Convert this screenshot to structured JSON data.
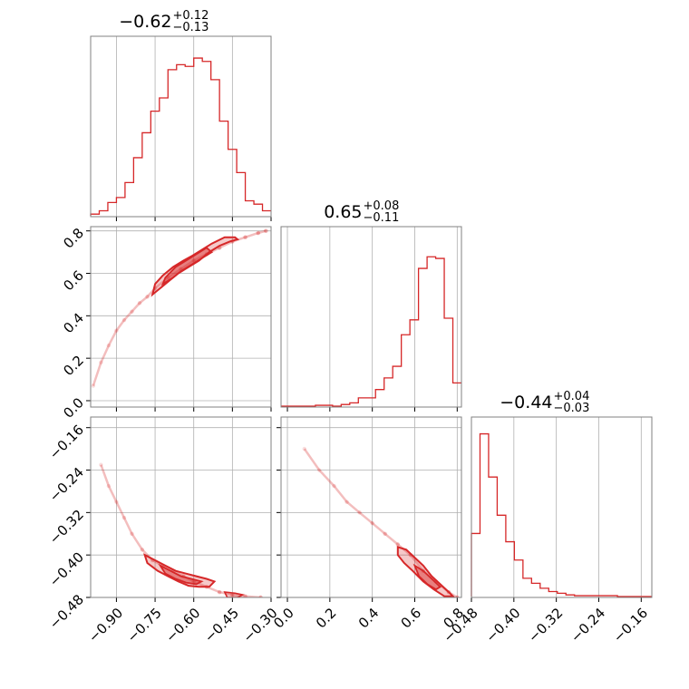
{
  "chart_data": {
    "type": "corner",
    "color": "#d62728",
    "grid": true,
    "parameters": [
      {
        "title": {
          "median": "−0.62",
          "upper": "+0.12",
          "lower": "−0.13"
        },
        "range": [
          -1.0,
          -0.3
        ],
        "ticks": [
          -0.9,
          -0.75,
          -0.6,
          -0.45,
          -0.3
        ],
        "tick_labels": [
          "−0.90",
          "−0.75",
          "−0.60",
          "−0.45",
          "−0.30"
        ],
        "hist": [
          0.01,
          0.03,
          0.08,
          0.11,
          0.2,
          0.35,
          0.5,
          0.63,
          0.71,
          0.88,
          0.91,
          0.9,
          0.95,
          0.93,
          0.82,
          0.57,
          0.4,
          0.26,
          0.09,
          0.07,
          0.03
        ]
      },
      {
        "title": {
          "median": "0.65",
          "upper": "+0.08",
          "lower": "−0.11"
        },
        "range": [
          -0.03,
          0.82
        ],
        "ticks": [
          0.0,
          0.2,
          0.4,
          0.6,
          0.8
        ],
        "tick_labels": [
          "0.0",
          "0.2",
          "0.4",
          "0.6",
          "0.8"
        ],
        "hist": [
          0.0,
          0.0,
          0.0,
          0.0,
          0.005,
          0.005,
          0.0,
          0.01,
          0.02,
          0.05,
          0.05,
          0.1,
          0.17,
          0.24,
          0.43,
          0.52,
          0.83,
          0.9,
          0.89,
          0.53,
          0.14
        ]
      },
      {
        "title": {
          "median": "−0.44",
          "upper": "+0.04",
          "lower": "−0.03"
        },
        "range": [
          -0.48,
          -0.14
        ],
        "ticks": [
          -0.48,
          -0.4,
          -0.32,
          -0.24,
          -0.16
        ],
        "tick_labels": [
          "−0.48",
          "−0.40",
          "−0.32",
          "−0.24",
          "−0.16"
        ],
        "hist": [
          0.38,
          0.98,
          0.72,
          0.49,
          0.33,
          0.22,
          0.11,
          0.08,
          0.05,
          0.03,
          0.02,
          0.01,
          0.005,
          0.005,
          0.005,
          0.005,
          0.005,
          0.0,
          0.0,
          0.0,
          0.0
        ]
      }
    ],
    "pairs": [
      {
        "x_param": 0,
        "y_param": 1,
        "trail": [
          [
            -0.99,
            0.07
          ],
          [
            -0.96,
            0.18
          ],
          [
            -0.93,
            0.26
          ],
          [
            -0.9,
            0.33
          ],
          [
            -0.87,
            0.38
          ],
          [
            -0.84,
            0.42
          ],
          [
            -0.81,
            0.46
          ],
          [
            -0.78,
            0.49
          ],
          [
            -0.75,
            0.53
          ],
          [
            -0.7,
            0.58
          ],
          [
            -0.65,
            0.62
          ],
          [
            -0.6,
            0.66
          ],
          [
            -0.55,
            0.69
          ],
          [
            -0.5,
            0.72
          ],
          [
            -0.45,
            0.75
          ],
          [
            -0.4,
            0.77
          ],
          [
            -0.35,
            0.79
          ],
          [
            -0.32,
            0.8
          ]
        ],
        "contour_outer": [
          [
            -0.76,
            0.5
          ],
          [
            -0.73,
            0.53
          ],
          [
            -0.69,
            0.57
          ],
          [
            -0.66,
            0.6
          ],
          [
            -0.62,
            0.63
          ],
          [
            -0.58,
            0.66
          ],
          [
            -0.54,
            0.7
          ],
          [
            -0.5,
            0.73
          ],
          [
            -0.46,
            0.75
          ],
          [
            -0.43,
            0.76
          ],
          [
            -0.44,
            0.77
          ],
          [
            -0.48,
            0.77
          ],
          [
            -0.53,
            0.74
          ],
          [
            -0.57,
            0.71
          ],
          [
            -0.61,
            0.68
          ],
          [
            -0.64,
            0.66
          ],
          [
            -0.68,
            0.63
          ],
          [
            -0.72,
            0.59
          ],
          [
            -0.75,
            0.55
          ]
        ],
        "contour_inner": [
          [
            -0.72,
            0.55
          ],
          [
            -0.68,
            0.58
          ],
          [
            -0.65,
            0.61
          ],
          [
            -0.61,
            0.64
          ],
          [
            -0.57,
            0.67
          ],
          [
            -0.53,
            0.7
          ],
          [
            -0.55,
            0.72
          ],
          [
            -0.59,
            0.69
          ],
          [
            -0.63,
            0.66
          ],
          [
            -0.67,
            0.63
          ],
          [
            -0.71,
            0.58
          ]
        ]
      },
      {
        "x_param": 0,
        "y_param": 2,
        "trail": [
          [
            -0.96,
            -0.23
          ],
          [
            -0.93,
            -0.27
          ],
          [
            -0.9,
            -0.3
          ],
          [
            -0.87,
            -0.33
          ],
          [
            -0.84,
            -0.36
          ],
          [
            -0.8,
            -0.39
          ],
          [
            -0.76,
            -0.41
          ],
          [
            -0.72,
            -0.42
          ],
          [
            -0.68,
            -0.43
          ],
          [
            -0.64,
            -0.44
          ],
          [
            -0.6,
            -0.45
          ],
          [
            -0.55,
            -0.46
          ],
          [
            -0.5,
            -0.47
          ],
          [
            -0.45,
            -0.475
          ],
          [
            -0.4,
            -0.478
          ],
          [
            -0.34,
            -0.48
          ]
        ],
        "contour_outer": [
          [
            -0.79,
            -0.4
          ],
          [
            -0.75,
            -0.41
          ],
          [
            -0.71,
            -0.42
          ],
          [
            -0.67,
            -0.43
          ],
          [
            -0.63,
            -0.435
          ],
          [
            -0.59,
            -0.44
          ],
          [
            -0.55,
            -0.445
          ],
          [
            -0.52,
            -0.45
          ],
          [
            -0.54,
            -0.46
          ],
          [
            -0.58,
            -0.46
          ],
          [
            -0.62,
            -0.458
          ],
          [
            -0.66,
            -0.45
          ],
          [
            -0.7,
            -0.44
          ],
          [
            -0.74,
            -0.43
          ],
          [
            -0.78,
            -0.415
          ]
        ],
        "contour_inner": [
          [
            -0.73,
            -0.42
          ],
          [
            -0.69,
            -0.43
          ],
          [
            -0.65,
            -0.44
          ],
          [
            -0.61,
            -0.445
          ],
          [
            -0.57,
            -0.45
          ],
          [
            -0.59,
            -0.455
          ],
          [
            -0.63,
            -0.452
          ],
          [
            -0.67,
            -0.445
          ],
          [
            -0.71,
            -0.435
          ]
        ],
        "contour_tail": [
          [
            -0.48,
            -0.47
          ],
          [
            -0.44,
            -0.472
          ],
          [
            -0.41,
            -0.475
          ],
          [
            -0.43,
            -0.48
          ],
          [
            -0.47,
            -0.48
          ]
        ]
      },
      {
        "x_param": 1,
        "y_param": 2,
        "trail": [
          [
            0.08,
            -0.2
          ],
          [
            0.15,
            -0.24
          ],
          [
            0.22,
            -0.27
          ],
          [
            0.28,
            -0.3
          ],
          [
            0.34,
            -0.32
          ],
          [
            0.4,
            -0.34
          ],
          [
            0.46,
            -0.36
          ],
          [
            0.52,
            -0.38
          ],
          [
            0.58,
            -0.4
          ],
          [
            0.64,
            -0.43
          ],
          [
            0.7,
            -0.45
          ],
          [
            0.76,
            -0.47
          ],
          [
            0.8,
            -0.48
          ]
        ],
        "contour_outer": [
          [
            0.52,
            -0.385
          ],
          [
            0.56,
            -0.39
          ],
          [
            0.6,
            -0.405
          ],
          [
            0.64,
            -0.42
          ],
          [
            0.68,
            -0.44
          ],
          [
            0.72,
            -0.455
          ],
          [
            0.76,
            -0.47
          ],
          [
            0.78,
            -0.478
          ],
          [
            0.74,
            -0.478
          ],
          [
            0.69,
            -0.465
          ],
          [
            0.64,
            -0.45
          ],
          [
            0.59,
            -0.43
          ],
          [
            0.55,
            -0.415
          ],
          [
            0.52,
            -0.4
          ]
        ],
        "contour_inner": [
          [
            0.6,
            -0.42
          ],
          [
            0.64,
            -0.43
          ],
          [
            0.68,
            -0.445
          ],
          [
            0.72,
            -0.46
          ],
          [
            0.7,
            -0.465
          ],
          [
            0.66,
            -0.455
          ],
          [
            0.62,
            -0.44
          ]
        ]
      }
    ]
  }
}
